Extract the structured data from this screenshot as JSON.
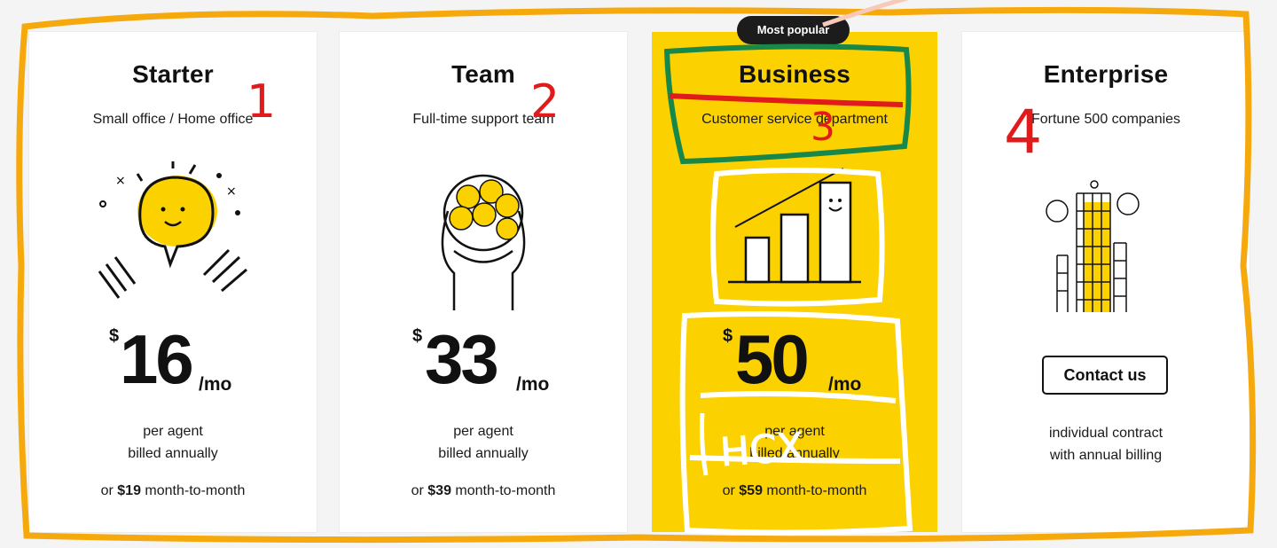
{
  "badge": "Most popular",
  "currency": "$",
  "period": "/mo",
  "plans": [
    {
      "name": "Starter",
      "subtitle": "Small office / Home office",
      "price": "16",
      "note1": "per agent",
      "note2": "billed annually",
      "mtm_prefix": "or ",
      "mtm_price": "$19",
      "mtm_suffix": " month-to-month"
    },
    {
      "name": "Team",
      "subtitle": "Full-time support team",
      "price": "33",
      "note1": "per agent",
      "note2": "billed annually",
      "mtm_prefix": "or ",
      "mtm_price": "$39",
      "mtm_suffix": " month-to-month"
    },
    {
      "name": "Business",
      "subtitle": "Customer service department",
      "price": "50",
      "note1": "per agent",
      "note2": "billed annually",
      "mtm_prefix": "or ",
      "mtm_price": "$59",
      "mtm_suffix": " month-to-month"
    },
    {
      "name": "Enterprise",
      "subtitle": "Fortune 500 companies",
      "button": "Contact us",
      "note1": "individual contract",
      "note2": "with annual billing"
    }
  ],
  "annotations": {
    "n1": "1",
    "n2": "2",
    "n3": "3",
    "n4": "4",
    "scribble": "HCX"
  },
  "colors": {
    "accent_yellow": "#fcd100",
    "frame_orange": "#f6a90c",
    "highlight_green": "#17874a",
    "strike_red": "#e11b1b",
    "badge_bg": "#1c1c1c"
  }
}
